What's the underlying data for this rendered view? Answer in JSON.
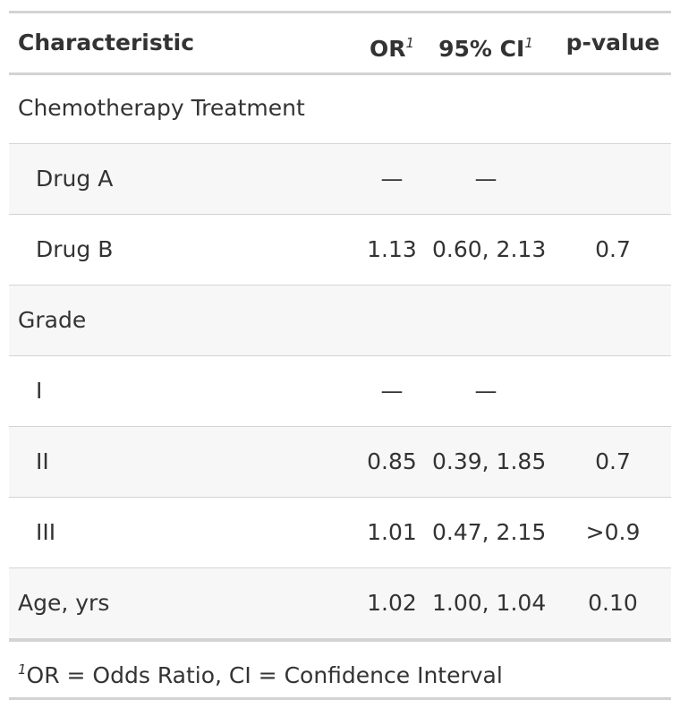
{
  "header": {
    "characteristic": "Characteristic",
    "or": "OR",
    "ci": "95% CI",
    "p": "p-value",
    "footnote_mark": "1"
  },
  "groups": [
    {
      "label": "Chemotherapy Treatment",
      "rows": [
        {
          "label": "Drug A",
          "or": "—",
          "ci": "—"
        },
        {
          "label": "Drug B",
          "or": "1.13",
          "ci": "0.60, 2.13",
          "p": "0.7"
        }
      ]
    },
    {
      "label": "Grade",
      "rows": [
        {
          "label": "I",
          "or": "—",
          "ci": "—"
        },
        {
          "label": "II",
          "or": "0.85",
          "ci": "0.39, 1.85",
          "p": "0.7"
        },
        {
          "label": "III",
          "or": "1.01",
          "ci": "0.47, 2.15",
          "p": ">0.9"
        }
      ]
    },
    {
      "label": "Age, yrs",
      "or": "1.02",
      "ci": "1.00, 1.04",
      "p": "0.10"
    }
  ],
  "footnote": {
    "mark": "1",
    "text": "OR = Odds Ratio, CI = Confidence Interval"
  }
}
